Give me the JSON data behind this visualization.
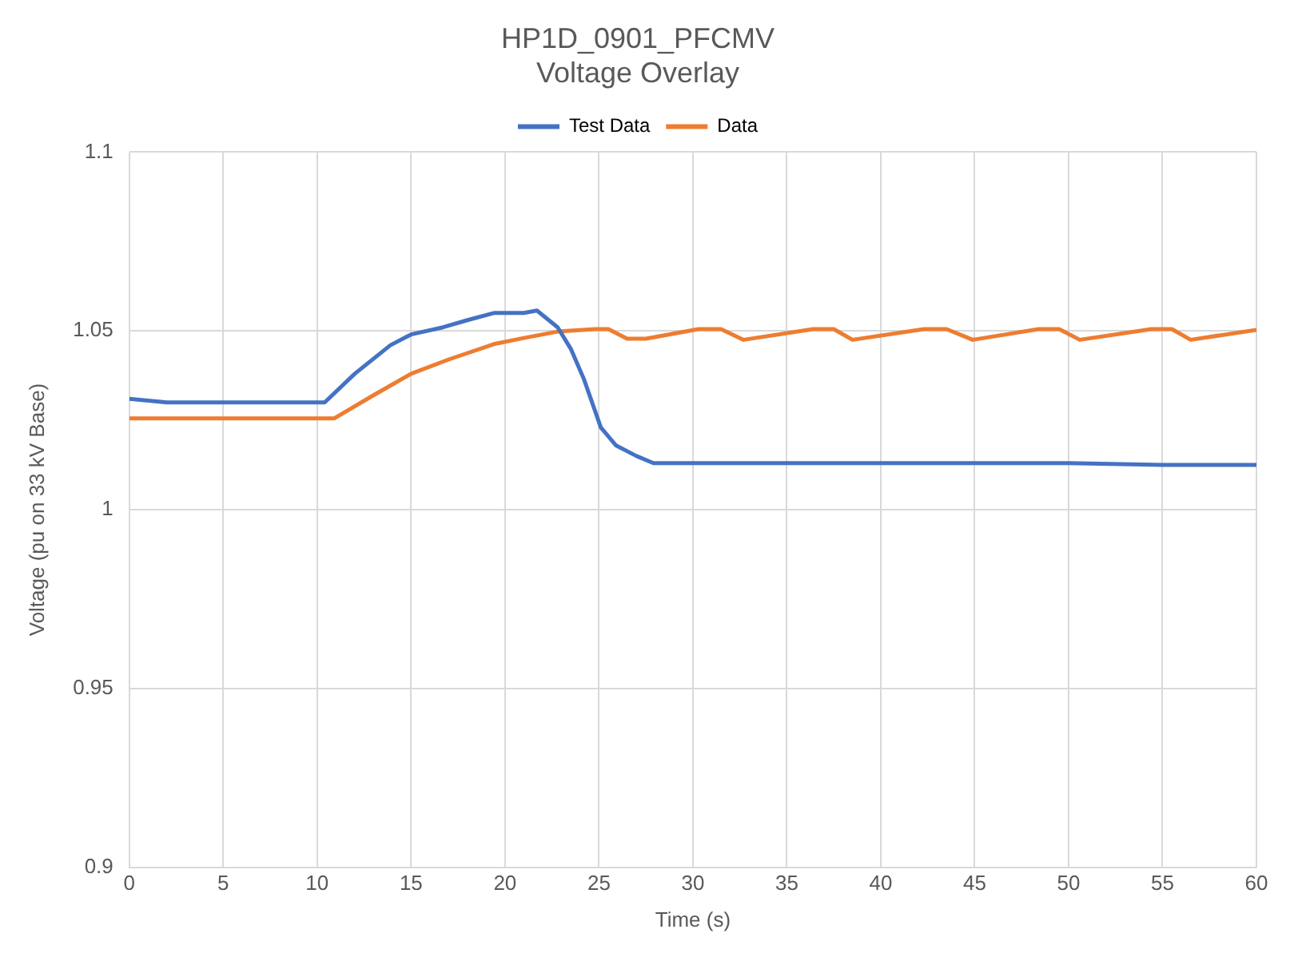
{
  "chart_data": {
    "type": "line",
    "title": "HP1D_0901_PFCMV",
    "subtitle": "Voltage Overlay",
    "xlabel": "Time (s)",
    "ylabel": "Voltage (pu on 33 kV Base)",
    "xlim": [
      0,
      60
    ],
    "xticks": [
      0,
      5,
      10,
      15,
      20,
      25,
      30,
      35,
      40,
      45,
      50,
      55,
      60
    ],
    "ylim": [
      0.9,
      1.1
    ],
    "yticks": [
      0.9,
      0.95,
      1,
      1.05,
      1.1
    ],
    "grid": true,
    "legend": "top",
    "marker": "none",
    "line_style": "solid",
    "series": [
      {
        "name": "Test Data",
        "color": "#4472c4",
        "x": [
          0,
          2,
          4,
          6,
          8,
          10,
          10.4,
          12,
          13.9,
          15,
          16.7,
          18,
          19.4,
          21,
          21.7,
          22.8,
          23.5,
          24.2,
          25.1,
          25.9,
          27,
          27.9,
          30,
          35,
          40,
          45,
          50,
          55,
          60
        ],
        "values": [
          1.031,
          1.03,
          1.03,
          1.03,
          1.03,
          1.03,
          1.03,
          1.038,
          1.046,
          1.049,
          1.051,
          1.053,
          1.055,
          1.055,
          1.0557,
          1.051,
          1.045,
          1.0365,
          1.023,
          1.018,
          1.015,
          1.013,
          1.013,
          1.013,
          1.013,
          1.013,
          1.013,
          1.0125,
          1.0125
        ]
      },
      {
        "name": "Data",
        "color": "#ed7d31",
        "x": [
          0,
          5,
          10.9,
          13,
          15,
          17,
          19.4,
          21,
          22.8,
          24.8,
          25.5,
          26.5,
          27.5,
          30.3,
          31.5,
          32.7,
          36.4,
          37.5,
          38.5,
          42.3,
          43.5,
          44.9,
          48.4,
          49.5,
          50.6,
          54.4,
          55.5,
          56.5,
          60
        ],
        "values": [
          1.0255,
          1.0255,
          1.0255,
          1.032,
          1.038,
          1.042,
          1.0463,
          1.048,
          1.0498,
          1.0505,
          1.0505,
          1.0478,
          1.0478,
          1.0505,
          1.0505,
          1.0475,
          1.0505,
          1.0505,
          1.0475,
          1.0505,
          1.0505,
          1.0475,
          1.0505,
          1.0505,
          1.0475,
          1.0505,
          1.0505,
          1.0475,
          1.0503
        ]
      }
    ]
  }
}
